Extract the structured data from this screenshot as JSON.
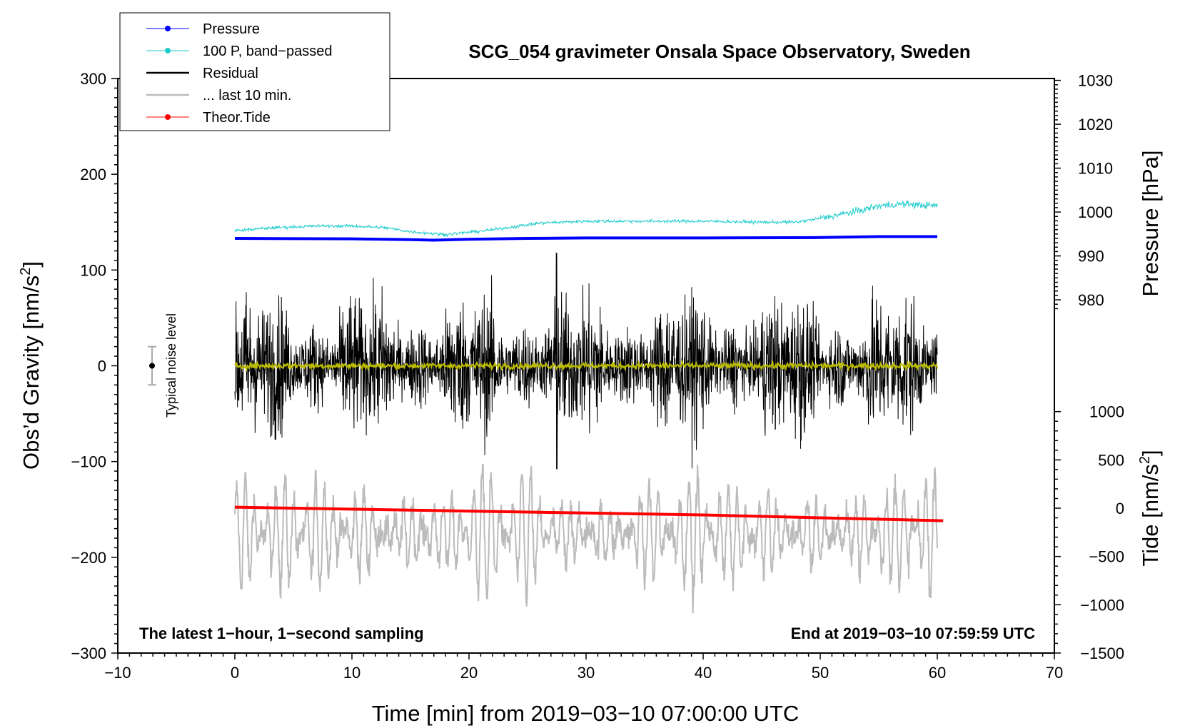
{
  "chart_data": {
    "type": "line",
    "title": "SCG_054 gravimeter Onsala Space Observatory, Sweden",
    "xlabel": "Time [min] from 2019−03−10 07:00:00 UTC",
    "ylabel_left": "Obs’d Gravity [nm/s",
    "ylabel_left_sup": "2",
    "ylabel_left_end": "]",
    "ylabel_right_pressure": "Pressure [hPa]",
    "ylabel_right_tide": "Tide [nm/s",
    "ylabel_right_tide_sup": "2",
    "ylabel_right_tide_end": "]",
    "xlim": [
      -10,
      70
    ],
    "ylim_left": [
      -300,
      300
    ],
    "x_ticks": [
      "−10",
      "0",
      "10",
      "20",
      "30",
      "40",
      "50",
      "60",
      "70"
    ],
    "y_left_ticks": [
      "300",
      "200",
      "100",
      "0",
      "−100",
      "−200",
      "−300"
    ],
    "pressure_ticks": [
      "1030",
      "1020",
      "1010",
      "1000",
      "990",
      "980"
    ],
    "tide_ticks": [
      "1000",
      "500",
      "0",
      "−500",
      "−1000",
      "−1500"
    ],
    "note_left": "The latest 1−hour, 1−second sampling",
    "note_right": "End at 2019−03−10 07:59:59 UTC",
    "noise_label": "Typical noise level",
    "noise_level": 20,
    "legend": [
      {
        "label": "Pressure",
        "color": "#0000ff",
        "marker": true
      },
      {
        "label": "100 P, band−passed",
        "color": "#22cccc",
        "marker": true
      },
      {
        "label": "Residual",
        "color": "#000000",
        "marker": false
      },
      {
        "label": "... last 10 min.",
        "color": "#bbbbbb",
        "marker": false
      },
      {
        "label": "Theor.Tide",
        "color": "#ff0000",
        "marker": true
      }
    ],
    "series": [
      {
        "name": "Pressure",
        "color": "#0000ff",
        "unit": "hPa",
        "x": [
          0,
          10,
          15,
          17,
          20,
          25,
          30,
          40,
          50,
          55,
          60
        ],
        "values": [
          994.0,
          993.9,
          993.7,
          993.6,
          993.8,
          994.0,
          994.1,
          994.1,
          994.2,
          994.4,
          994.4
        ]
      },
      {
        "name": "100 P, band−passed",
        "color": "#22cccc",
        "unit": "nm/s2 (left axis)",
        "x": [
          0,
          3,
          7,
          10,
          13,
          15,
          18,
          22,
          26,
          30,
          35,
          40,
          45,
          48,
          50,
          53,
          55,
          57,
          60
        ],
        "values": [
          141,
          144,
          146,
          146,
          144,
          140,
          137,
          142,
          149,
          151,
          151,
          151,
          150,
          150,
          154,
          161,
          167,
          169,
          167
        ]
      },
      {
        "name": "Residual",
        "color": "#000000",
        "unit": "nm/s2",
        "x_range": [
          0,
          60
        ],
        "typical_amplitude": 40,
        "max": 118,
        "min": -108
      },
      {
        "name": "Residual smoothed",
        "color": "#bbbb00",
        "unit": "nm/s2",
        "x_range": [
          0,
          60
        ],
        "typical_value": 0
      },
      {
        "name": "... last 10 min.",
        "color": "#bbbbbb",
        "unit": "nm/s2 (shifted)",
        "x_range": [
          0,
          60
        ],
        "center": -175,
        "max": -103,
        "min": -265
      },
      {
        "name": "Theor.Tide",
        "color": "#ff0000",
        "unit": "nm/s2 (tide axis)",
        "x": [
          0,
          10,
          20,
          30,
          40,
          50,
          60.5
        ],
        "values": [
          10,
          -10,
          -30,
          -50,
          -70,
          -100,
          -130
        ]
      }
    ]
  }
}
